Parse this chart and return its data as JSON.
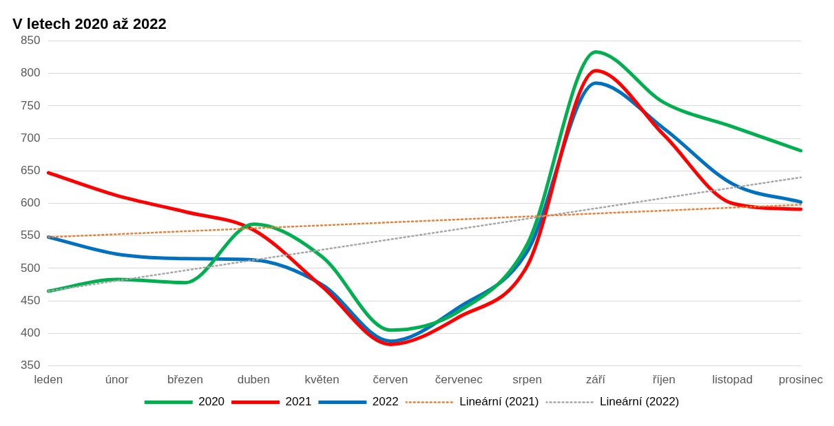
{
  "chart_data": {
    "type": "line",
    "title": "V letech 2020 až 2022",
    "categories": [
      "leden",
      "únor",
      "březen",
      "duben",
      "květen",
      "červen",
      "červenec",
      "srpen",
      "září",
      "říjen",
      "listopad",
      "prosinec"
    ],
    "series": [
      {
        "name": "2020",
        "color": "#00b050",
        "values": [
          465,
          483,
          478,
          568,
          518,
          405,
          434,
          537,
          833,
          755,
          718,
          681
        ]
      },
      {
        "name": "2021",
        "color": "#ff0000",
        "values": [
          647,
          612,
          587,
          559,
          472,
          383,
          425,
          504,
          804,
          705,
          600,
          591
        ]
      },
      {
        "name": "2022",
        "color": "#0070c0",
        "values": [
          548,
          522,
          515,
          513,
          475,
          388,
          440,
          526,
          785,
          715,
          630,
          602
        ]
      },
      {
        "name": "Lineární (2021)",
        "color": "#ed7d31",
        "line_style": "dotted",
        "values": [
          548,
          null,
          null,
          null,
          null,
          null,
          null,
          null,
          null,
          null,
          null,
          598
        ]
      },
      {
        "name": "Lineární (2022)",
        "color": "#a5a5a5",
        "line_style": "dotted",
        "values": [
          465,
          null,
          null,
          null,
          null,
          null,
          null,
          null,
          null,
          null,
          null,
          640
        ]
      }
    ],
    "ylim": [
      350,
      850
    ],
    "yticks": [
      350,
      400,
      450,
      500,
      550,
      600,
      650,
      700,
      750,
      800,
      850
    ],
    "grid": "y",
    "legend": "bottom",
    "marker": "none",
    "line_style": "solid"
  }
}
